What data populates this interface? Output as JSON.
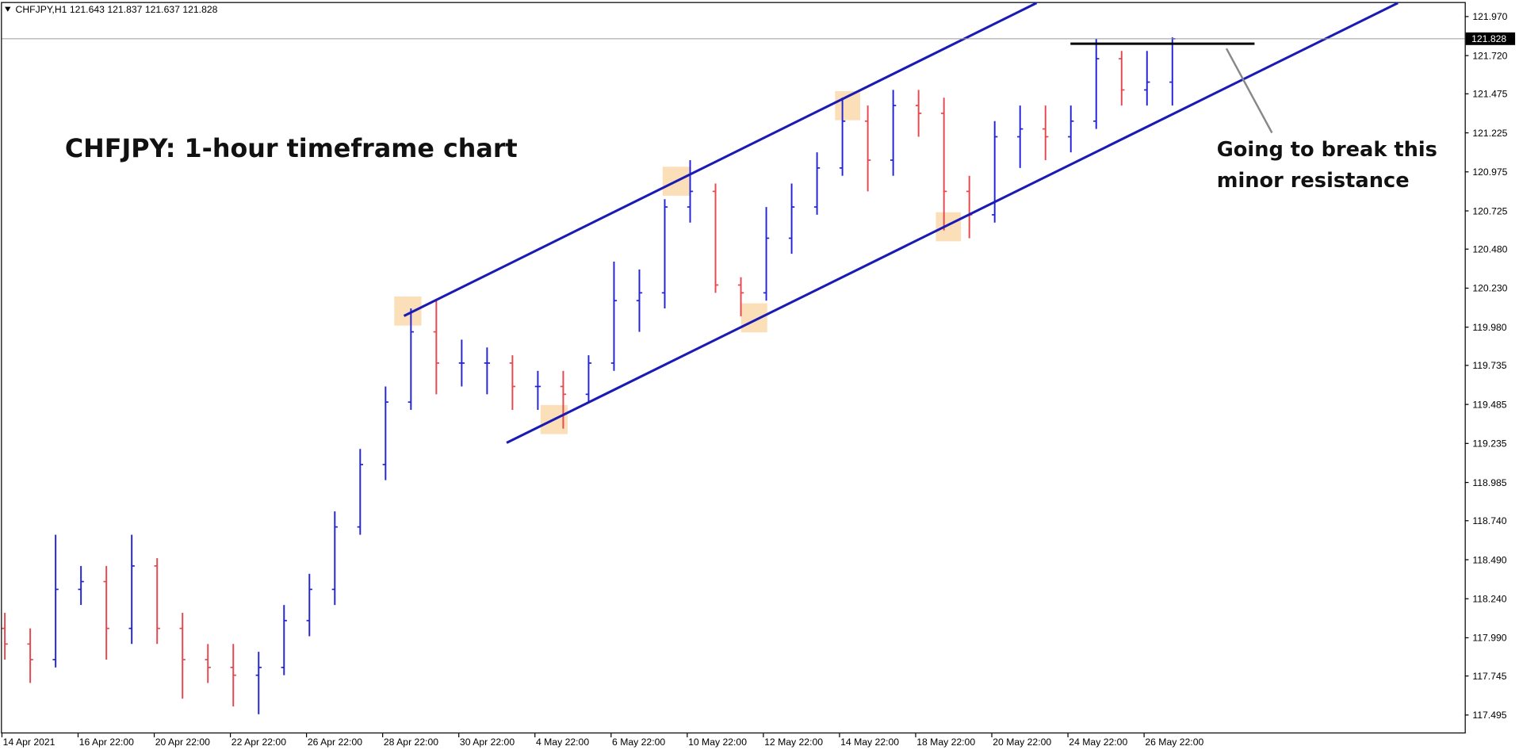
{
  "chart_data": {
    "type": "ohlc",
    "header": "CHFJPY,H1 121.643 121.837 121.637 121.828",
    "title": "CHFJPY: 1-hour timeframe chart",
    "annotation": [
      "Going to break this",
      "minor resistance"
    ],
    "x_labels": [
      "14 Apr 2021",
      "16 Apr 22:00",
      "20 Apr 22:00",
      "22 Apr 22:00",
      "26 Apr 22:00",
      "28 Apr 22:00",
      "30 Apr 22:00",
      "4 May 22:00",
      "6 May 22:00",
      "10 May 22:00",
      "12 May 22:00",
      "14 May 22:00",
      "18 May 22:00",
      "20 May 22:00",
      "24 May 22:00",
      "26 May 22:00"
    ],
    "series": {
      "open": [
        118.05,
        117.95,
        117.85,
        118.3,
        118.35,
        118.05,
        118.45,
        118.05,
        117.85,
        117.8,
        117.75,
        117.8,
        118.1,
        118.3,
        118.7,
        119.1,
        119.5,
        119.95,
        119.75,
        119.75,
        119.75,
        119.6,
        119.6,
        119.55,
        119.75,
        120.15,
        120.2,
        120.75,
        120.85,
        120.25,
        120.2,
        120.55,
        120.75,
        121.0,
        121.3,
        121.05,
        121.4,
        121.35,
        120.85,
        120.7,
        121.2,
        121.25,
        121.2,
        121.3,
        121.7,
        121.5,
        121.55
      ],
      "high": [
        118.15,
        118.05,
        118.65,
        118.45,
        118.45,
        118.65,
        118.5,
        118.15,
        117.95,
        117.95,
        117.9,
        118.2,
        118.4,
        118.8,
        119.2,
        119.6,
        120.1,
        120.15,
        119.9,
        119.85,
        119.8,
        119.7,
        119.7,
        119.8,
        120.4,
        120.35,
        120.8,
        121.05,
        120.9,
        120.3,
        120.75,
        120.9,
        121.1,
        121.45,
        121.4,
        121.5,
        121.5,
        121.45,
        120.95,
        121.3,
        121.4,
        121.4,
        121.4,
        121.83,
        121.75,
        121.75,
        121.837
      ],
      "low": [
        117.85,
        117.7,
        117.8,
        118.2,
        117.85,
        117.95,
        117.95,
        117.6,
        117.7,
        117.55,
        117.5,
        117.75,
        118.0,
        118.2,
        118.65,
        119.0,
        119.45,
        119.55,
        119.6,
        119.55,
        119.45,
        119.45,
        119.33,
        119.5,
        119.7,
        119.95,
        120.1,
        120.65,
        120.2,
        120.05,
        120.15,
        120.45,
        120.7,
        120.95,
        120.85,
        120.95,
        121.2,
        120.6,
        120.55,
        120.65,
        121.0,
        121.05,
        121.1,
        121.25,
        121.4,
        121.4,
        121.4
      ],
      "close": [
        117.95,
        117.85,
        118.3,
        118.35,
        118.05,
        118.45,
        118.05,
        117.85,
        117.8,
        117.75,
        117.8,
        118.1,
        118.3,
        118.7,
        119.1,
        119.5,
        119.95,
        119.75,
        119.75,
        119.75,
        119.6,
        119.6,
        119.55,
        119.75,
        120.15,
        120.2,
        120.75,
        120.85,
        120.25,
        120.2,
        120.55,
        120.75,
        121.0,
        121.3,
        121.05,
        121.4,
        121.35,
        120.85,
        120.7,
        121.2,
        121.25,
        121.2,
        121.3,
        121.7,
        121.5,
        121.55,
        121.828
      ]
    },
    "up_color": "#2424d6",
    "down_color": "#e5484f",
    "last_price": 121.828,
    "ylim": [
      117.377,
      122.057
    ],
    "yticks": [
      117.495,
      117.745,
      {
        "value": 117.99,
        "label": "117.990"
      },
      {
        "value": 118.24,
        "label": "118.240"
      },
      {
        "value": 118.49,
        "label": "118.490"
      },
      {
        "value": 118.74,
        "label": "118.740"
      },
      118.985,
      119.235,
      119.485,
      119.735,
      {
        "value": 119.98,
        "label": "119.980"
      },
      {
        "value": 120.23,
        "label": "120.230"
      },
      {
        "value": 120.48,
        "label": "120.480"
      },
      120.725,
      120.975,
      121.225,
      121.475,
      {
        "value": 121.72,
        "label": "121.720"
      },
      {
        "value": 121.97,
        "label": "121.970"
      }
    ]
  }
}
